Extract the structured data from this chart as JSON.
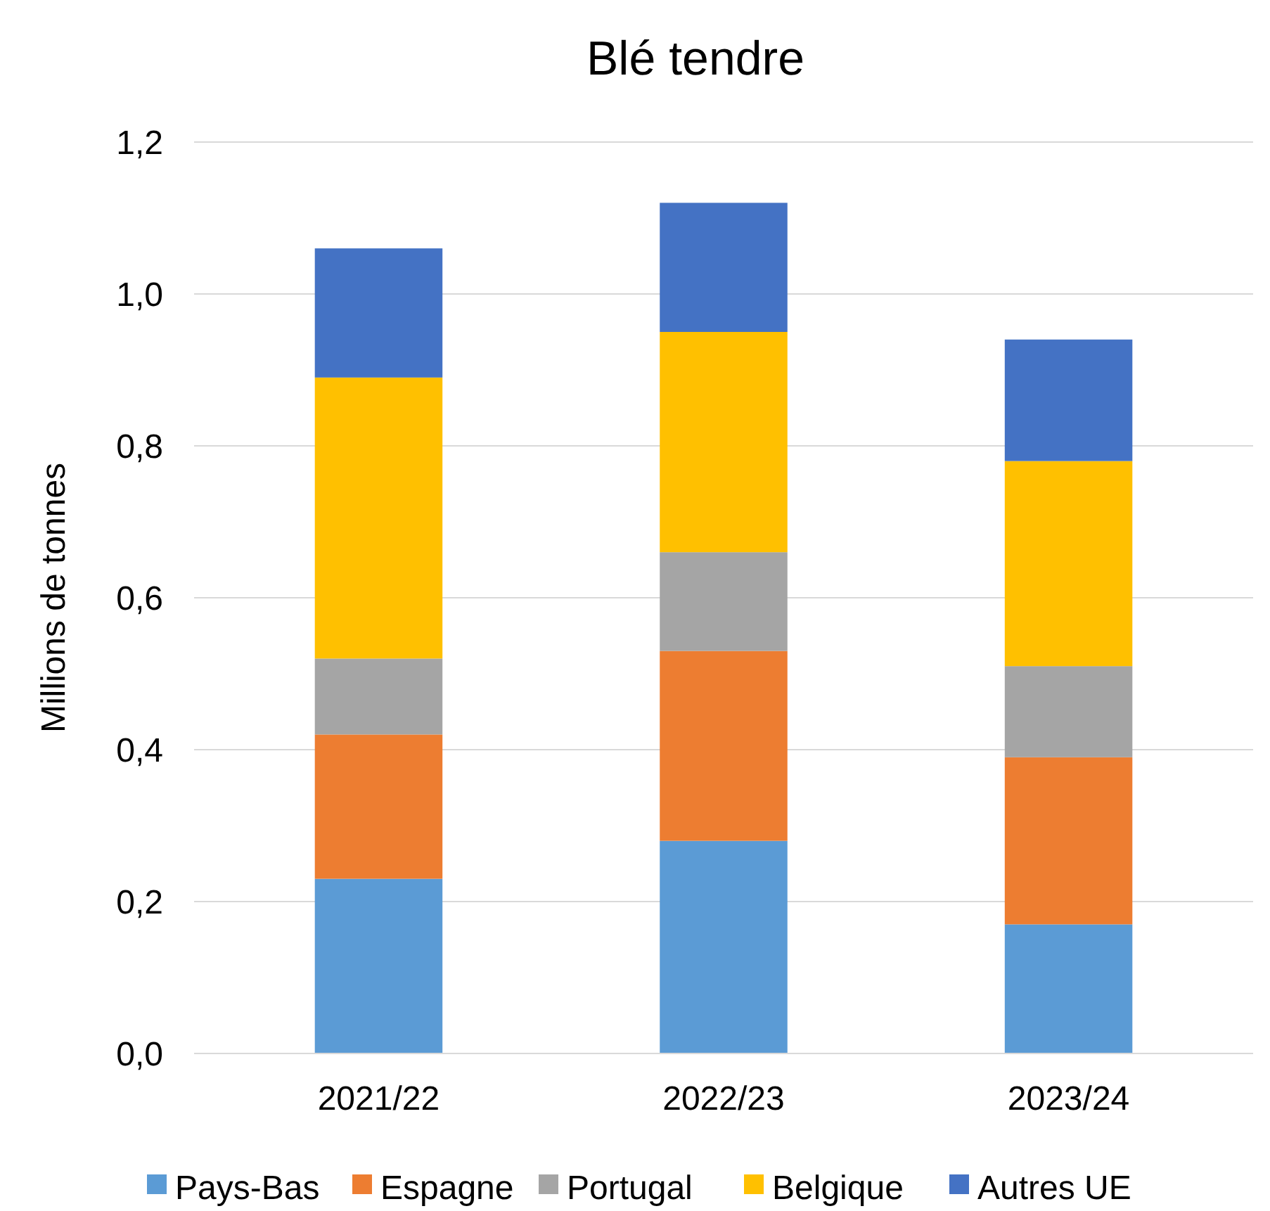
{
  "chart_data": {
    "type": "bar",
    "title": "Blé tendre",
    "ylabel": "Millions de tonnes",
    "categories": [
      "2021/22",
      "2022/23",
      "2023/24"
    ],
    "stacked": true,
    "series": [
      {
        "name": "Pays-Bas",
        "color": "#5b9bd5",
        "values": [
          0.23,
          0.28,
          0.17
        ]
      },
      {
        "name": "Espagne",
        "color": "#ed7d31",
        "values": [
          0.19,
          0.25,
          0.22
        ]
      },
      {
        "name": "Portugal",
        "color": "#a5a5a5",
        "values": [
          0.1,
          0.13,
          0.12
        ]
      },
      {
        "name": "Belgique",
        "color": "#ffc000",
        "values": [
          0.37,
          0.29,
          0.27
        ]
      },
      {
        "name": "Autres UE",
        "color": "#4472c4",
        "values": [
          0.17,
          0.17,
          0.16
        ]
      }
    ],
    "ylim": [
      0,
      1.2
    ],
    "yticks": [
      {
        "value": 0,
        "label": "0,0"
      },
      {
        "value": 0.2,
        "label": "0,2"
      },
      {
        "value": 0.4,
        "label": "0,4"
      },
      {
        "value": 0.6,
        "label": "0,6"
      },
      {
        "value": 0.8,
        "label": "0,8"
      },
      {
        "value": 1.0,
        "label": "1,0"
      },
      {
        "value": 1.2,
        "label": "1,2"
      }
    ],
    "grid": "y",
    "legend": "bottom"
  }
}
